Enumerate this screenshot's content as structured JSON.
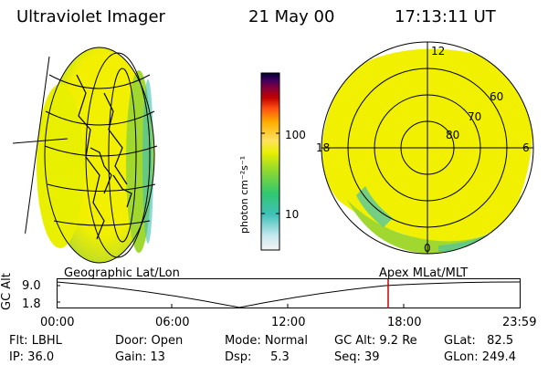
{
  "header": {
    "instrument": "Ultraviolet Imager",
    "date": "21 May 00",
    "time": "17:13:11 UT"
  },
  "colorbar": {
    "unit_label": "photon cm⁻²s⁻¹",
    "tick_100": "100",
    "tick_10": "10",
    "scale": "log",
    "stops": [
      "#f4f4f4",
      "#c8e8f0",
      "#40c0b8",
      "#30c870",
      "#90d830",
      "#e8f000",
      "#ffe060",
      "#ffb000",
      "#ff5010",
      "#c00000",
      "#800040",
      "#400060",
      "#000030"
    ]
  },
  "polar_plot": {
    "mlt_labels": {
      "top": "12",
      "left": "18",
      "right": "6",
      "bottom": "0"
    },
    "lat_labels": [
      "60",
      "70",
      "80"
    ]
  },
  "timeline": {
    "left_label": "Geographic Lat/Lon",
    "right_label": "Apex MLat/MLT",
    "axis_label": "GC Alt",
    "y_top": "9.0",
    "y_bottom": "1.8",
    "ticks": [
      "00:00",
      "06:00",
      "12:00",
      "18:00",
      "23:59"
    ],
    "current_marker_time": "17:13:11"
  },
  "status": {
    "flt": "Flt: LBHL",
    "ip": "IP: 36.0",
    "door": "Door: Open",
    "gain": "Gain: 13",
    "mode": "Mode: Normal",
    "dsp": "Dsp:     5.3",
    "gc_alt": "GC Alt: 9.2 Re",
    "seq": "Seq: 39",
    "glat": "GLat:   82.5",
    "glon": "GLon: 249.4"
  },
  "colors": {
    "marker": "#cc0000",
    "aurora_yellow": "#f0f000",
    "aurora_green": "#a0d830"
  }
}
